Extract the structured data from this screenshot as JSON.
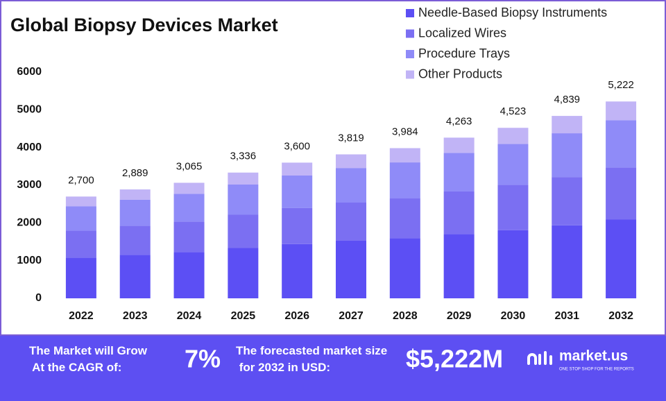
{
  "chart_data": {
    "type": "stacked_bar",
    "title": "Global Biopsy Devices Market",
    "categories": [
      "2022",
      "2023",
      "2024",
      "2025",
      "2026",
      "2027",
      "2028",
      "2029",
      "2030",
      "2031",
      "2032"
    ],
    "series": [
      {
        "name": "Needle-Based Biopsy Instruments",
        "color": "#5c4ff4",
        "values": [
          1080,
          1156,
          1226,
          1334,
          1440,
          1528,
          1594,
          1705,
          1809,
          1936,
          2089
        ]
      },
      {
        "name": "Localized Wires",
        "color": "#7b6ff2",
        "values": [
          716,
          766,
          812,
          884,
          954,
          1012,
          1056,
          1130,
          1199,
          1282,
          1384
        ]
      },
      {
        "name": "Procedure Trays",
        "color": "#8f8bf8",
        "values": [
          648,
          693,
          736,
          801,
          864,
          917,
          956,
          1023,
          1086,
          1161,
          1253
        ]
      },
      {
        "name": "Other Products",
        "color": "#c1b4f6",
        "values": [
          256,
          274,
          291,
          317,
          342,
          362,
          378,
          405,
          429,
          460,
          496
        ]
      }
    ],
    "totals": [
      2700,
      2889,
      3065,
      3336,
      3600,
      3819,
      3984,
      4263,
      4523,
      4839,
      5222
    ],
    "total_labels": [
      "2,700",
      "2,889",
      "3,065",
      "3,336",
      "3,600",
      "3,819",
      "3,984",
      "4,263",
      "4,523",
      "4,839",
      "5,222"
    ],
    "ylim": [
      0,
      6000
    ],
    "yticks": [
      0,
      1000,
      2000,
      3000,
      4000,
      5000,
      6000
    ],
    "grid": false,
    "legend": "top-right"
  },
  "footer": {
    "cagr_text": "The Market will Grow At the CAGR of:",
    "cagr": "7%",
    "forecast_text": "The forecasted market size for 2032 in USD:",
    "forecast": "$5,222M",
    "logo": "market.us",
    "tagline": "ONE STOP SHOP FOR THE REPORTS"
  }
}
